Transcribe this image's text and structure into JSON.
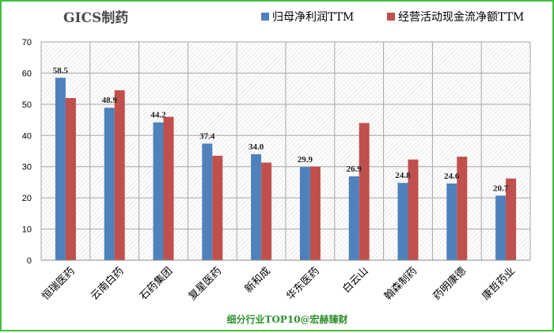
{
  "chart_data": {
    "type": "bar",
    "title": "GICS制药",
    "categories": [
      "恒瑞医药",
      "云南白药",
      "石药集团",
      "复星医药",
      "新和成",
      "华东医药",
      "白云山",
      "翰森制药",
      "药明康德",
      "康哲药业"
    ],
    "series": [
      {
        "name": "归母净利润TTM",
        "color": "#4f81bd",
        "values": [
          58.5,
          48.9,
          44.2,
          37.4,
          34.0,
          29.9,
          26.9,
          24.8,
          24.6,
          20.7
        ]
      },
      {
        "name": "经营活动现金流净额TTM",
        "color": "#c0504d",
        "values": [
          52.0,
          54.5,
          46.0,
          33.5,
          31.3,
          30.0,
          44.0,
          32.3,
          33.2,
          26.2
        ]
      }
    ],
    "data_labels": [
      "58.5",
      "48.9",
      "44.2",
      "37.4",
      "34.0",
      "29.9",
      "26.9",
      "24.8",
      "24.6",
      "20.7"
    ],
    "ylim": [
      0,
      70
    ],
    "yticks": [
      0,
      10,
      20,
      30,
      40,
      50,
      60,
      70
    ],
    "grid": true,
    "legend_position": "top-right",
    "footer": "细分行业TOP10@宏赫臻财"
  }
}
